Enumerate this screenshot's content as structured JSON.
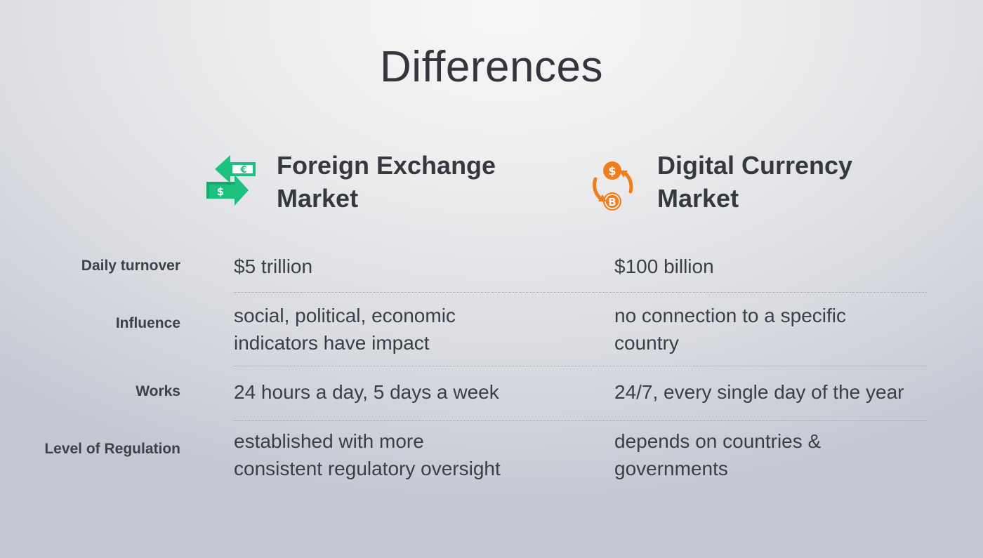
{
  "title": "Differences",
  "columns": [
    {
      "icon": "currency-exchange-icon",
      "icon_color": "#1cc07f",
      "line1": "Foreign Exchange",
      "line2": "Market"
    },
    {
      "icon": "crypto-exchange-icon",
      "icon_color": "#f07d1e",
      "line1": "Digital Currency",
      "line2": "Market"
    }
  ],
  "rows": [
    {
      "label": "Daily turnover",
      "fx": [
        "$5 trillion"
      ],
      "dc": [
        "$100 billion"
      ]
    },
    {
      "label": "Influence",
      "fx": [
        "social, political, economic",
        "indicators have impact"
      ],
      "dc": [
        "no connection to a specific",
        "country"
      ]
    },
    {
      "label": "Works",
      "fx": [
        "24 hours a day, 5 days a week"
      ],
      "dc": [
        "24/7, every single day of the year"
      ]
    },
    {
      "label": "Level of Regulation",
      "fx": [
        "established with more",
        "consistent regulatory oversight"
      ],
      "dc": [
        "depends on countries &",
        "governments"
      ]
    }
  ]
}
